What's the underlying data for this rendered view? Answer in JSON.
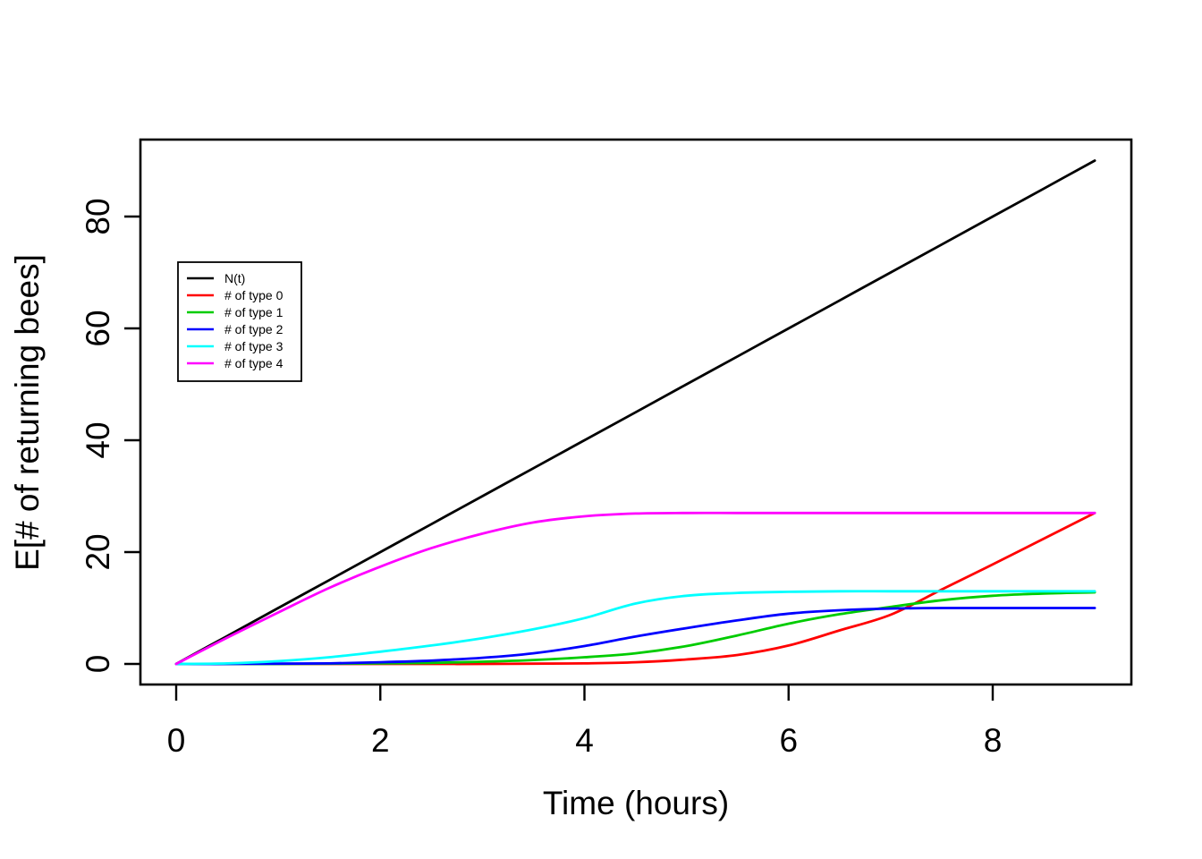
{
  "chart_data": {
    "type": "line",
    "title": "",
    "xlabel": "Time (hours)",
    "ylabel": "E[# of returning bees]",
    "xlim": [
      -0.36,
      9.36
    ],
    "ylim": [
      -3.7,
      93.7
    ],
    "x_ticks": [
      0,
      2,
      4,
      6,
      8
    ],
    "y_ticks": [
      0,
      20,
      40,
      60,
      80
    ],
    "grid": false,
    "background": "#ffffff",
    "axis_color": "#000000",
    "legend": {
      "position": "upper-left-inside",
      "border": true,
      "border_color": "#000000"
    },
    "x": [
      0,
      0.5,
      1,
      1.5,
      2,
      2.5,
      3,
      3.5,
      4,
      4.5,
      5,
      5.5,
      6,
      6.5,
      7,
      7.5,
      8,
      8.5,
      9
    ],
    "series": [
      {
        "name": "N(t)",
        "color": "#000000",
        "values": [
          0,
          5,
          10,
          15,
          20,
          25,
          30,
          35,
          40,
          45,
          50,
          55,
          60,
          65,
          70,
          75,
          80,
          85,
          90
        ]
      },
      {
        "name": "# of type 0",
        "color": "#FF0000",
        "values": [
          0,
          0,
          0,
          0,
          0,
          0,
          0,
          0.05,
          0.1,
          0.3,
          0.8,
          1.6,
          3.3,
          6.0,
          8.8,
          13.3,
          17.8,
          22.4,
          27
        ]
      },
      {
        "name": "# of type 1",
        "color": "#00CC00",
        "values": [
          0,
          0,
          0,
          0.05,
          0.1,
          0.2,
          0.4,
          0.7,
          1.2,
          1.9,
          3.2,
          5.1,
          7.2,
          8.9,
          10.2,
          11.4,
          12.2,
          12.6,
          12.8
        ]
      },
      {
        "name": "# of type 2",
        "color": "#0000FF",
        "values": [
          0,
          0,
          0.05,
          0.1,
          0.3,
          0.6,
          1.1,
          1.9,
          3.2,
          4.9,
          6.4,
          7.8,
          9.0,
          9.6,
          9.9,
          10,
          10,
          10,
          10
        ]
      },
      {
        "name": "# of type 3",
        "color": "#00FFFF",
        "values": [
          0,
          0.1,
          0.5,
          1.2,
          2.2,
          3.3,
          4.6,
          6.2,
          8.2,
          10.8,
          12.2,
          12.7,
          12.9,
          13,
          13,
          13,
          13,
          13,
          13
        ]
      },
      {
        "name": "# of type 4",
        "color": "#FF00FF",
        "values": [
          0,
          4.7,
          9.2,
          13.6,
          17.4,
          20.7,
          23.3,
          25.3,
          26.4,
          26.9,
          27,
          27,
          27,
          27,
          27,
          27,
          27,
          27,
          27
        ]
      }
    ]
  }
}
